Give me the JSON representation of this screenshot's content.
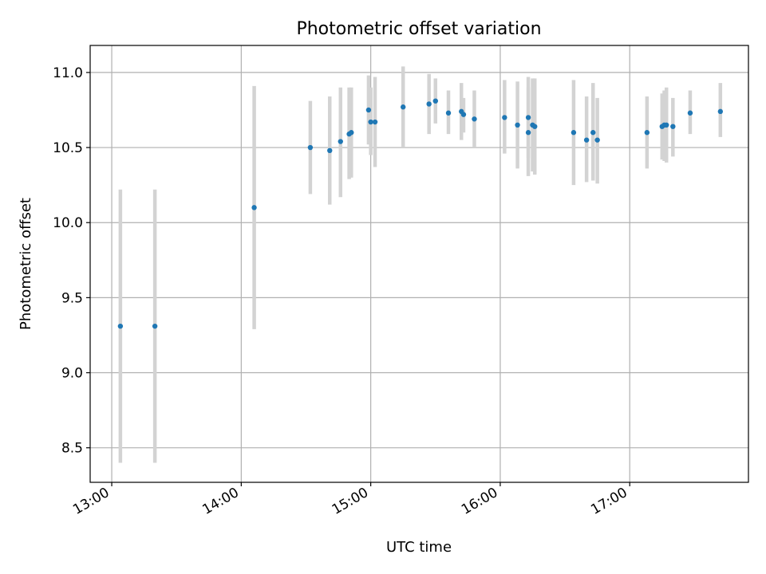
{
  "chart_data": {
    "type": "scatter",
    "title": "Photometric offset variation",
    "xlabel": "UTC time",
    "ylabel": "Photometric offset",
    "xlim": [
      "12:50",
      "17:55"
    ],
    "ylim": [
      8.27,
      11.18
    ],
    "x_ticks": [
      "13:00",
      "14:00",
      "15:00",
      "16:00",
      "17:00"
    ],
    "y_ticks": [
      8.5,
      9.0,
      9.5,
      10.0,
      10.5,
      11.0
    ],
    "y_tick_labels": [
      "8.5",
      "9.0",
      "9.5",
      "10.0",
      "10.5",
      "11.0"
    ],
    "grid": true,
    "colors": {
      "point": "#1f77b4",
      "errorbar": "#d3d3d3",
      "grid": "#b0b0b0"
    },
    "points": [
      {
        "x": "13:04",
        "y": 9.31,
        "ylo": 8.4,
        "yhi": 10.22
      },
      {
        "x": "13:20",
        "y": 9.31,
        "ylo": 8.4,
        "yhi": 10.22
      },
      {
        "x": "14:06",
        "y": 10.1,
        "ylo": 9.29,
        "yhi": 10.91
      },
      {
        "x": "14:32",
        "y": 10.5,
        "ylo": 10.19,
        "yhi": 10.81
      },
      {
        "x": "14:41",
        "y": 10.48,
        "ylo": 10.12,
        "yhi": 10.84
      },
      {
        "x": "14:46",
        "y": 10.54,
        "ylo": 10.17,
        "yhi": 10.9
      },
      {
        "x": "14:50",
        "y": 10.59,
        "ylo": 10.29,
        "yhi": 10.9
      },
      {
        "x": "14:51",
        "y": 10.6,
        "ylo": 10.3,
        "yhi": 10.9
      },
      {
        "x": "14:59",
        "y": 10.75,
        "ylo": 10.52,
        "yhi": 10.98
      },
      {
        "x": "15:00",
        "y": 10.67,
        "ylo": 10.45,
        "yhi": 10.9
      },
      {
        "x": "15:02",
        "y": 10.67,
        "ylo": 10.37,
        "yhi": 10.97
      },
      {
        "x": "15:15",
        "y": 10.77,
        "ylo": 10.5,
        "yhi": 11.04
      },
      {
        "x": "15:27",
        "y": 10.79,
        "ylo": 10.59,
        "yhi": 10.99
      },
      {
        "x": "15:30",
        "y": 10.81,
        "ylo": 10.66,
        "yhi": 10.96
      },
      {
        "x": "15:36",
        "y": 10.73,
        "ylo": 10.59,
        "yhi": 10.88
      },
      {
        "x": "15:42",
        "y": 10.74,
        "ylo": 10.55,
        "yhi": 10.93
      },
      {
        "x": "15:43",
        "y": 10.72,
        "ylo": 10.6,
        "yhi": 10.83
      },
      {
        "x": "15:48",
        "y": 10.69,
        "ylo": 10.5,
        "yhi": 10.88
      },
      {
        "x": "16:02",
        "y": 10.7,
        "ylo": 10.46,
        "yhi": 10.95
      },
      {
        "x": "16:08",
        "y": 10.65,
        "ylo": 10.36,
        "yhi": 10.94
      },
      {
        "x": "16:13",
        "y": 10.7,
        "ylo": 10.43,
        "yhi": 10.97
      },
      {
        "x": "16:13",
        "y": 10.6,
        "ylo": 10.31,
        "yhi": 10.9
      },
      {
        "x": "16:15",
        "y": 10.65,
        "ylo": 10.34,
        "yhi": 10.96
      },
      {
        "x": "16:16",
        "y": 10.64,
        "ylo": 10.32,
        "yhi": 10.96
      },
      {
        "x": "16:34",
        "y": 10.6,
        "ylo": 10.25,
        "yhi": 10.95
      },
      {
        "x": "16:40",
        "y": 10.55,
        "ylo": 10.27,
        "yhi": 10.84
      },
      {
        "x": "16:43",
        "y": 10.6,
        "ylo": 10.28,
        "yhi": 10.93
      },
      {
        "x": "16:45",
        "y": 10.55,
        "ylo": 10.26,
        "yhi": 10.83
      },
      {
        "x": "17:08",
        "y": 10.6,
        "ylo": 10.36,
        "yhi": 10.84
      },
      {
        "x": "17:15",
        "y": 10.64,
        "ylo": 10.42,
        "yhi": 10.86
      },
      {
        "x": "17:16",
        "y": 10.65,
        "ylo": 10.41,
        "yhi": 10.88
      },
      {
        "x": "17:17",
        "y": 10.65,
        "ylo": 10.4,
        "yhi": 10.9
      },
      {
        "x": "17:20",
        "y": 10.64,
        "ylo": 10.44,
        "yhi": 10.83
      },
      {
        "x": "17:28",
        "y": 10.73,
        "ylo": 10.59,
        "yhi": 10.88
      },
      {
        "x": "17:42",
        "y": 10.74,
        "ylo": 10.57,
        "yhi": 10.93
      }
    ]
  }
}
